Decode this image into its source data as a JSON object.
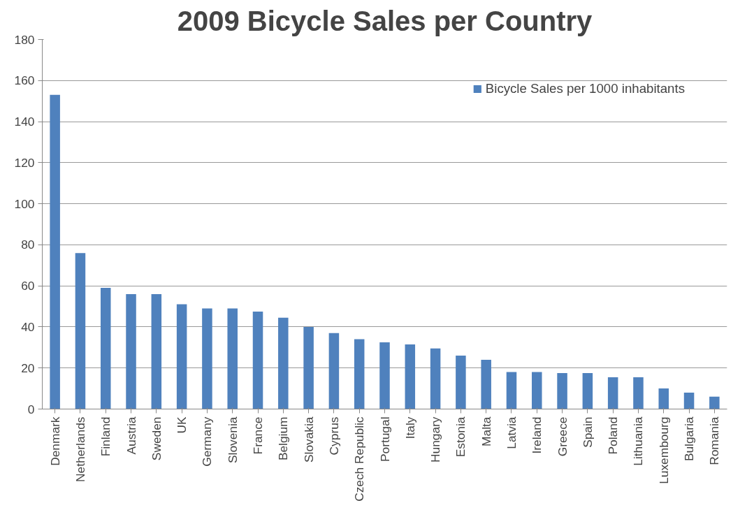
{
  "chart_data": {
    "type": "bar",
    "title": "2009 Bicycle Sales per Country",
    "categories": [
      "Denmark",
      "Netherlands",
      "Finland",
      "Austria",
      "Sweden",
      "UK",
      "Germany",
      "Slovenia",
      "France",
      "Belgium",
      "Slovakia",
      "Cyprus",
      "Czech Republic",
      "Portugal",
      "Italy",
      "Hungary",
      "Estonia",
      "Malta",
      "Latvia",
      "Ireland",
      "Greece",
      "Spain",
      "Poland",
      "Lithuania",
      "Luxembourg",
      "Bulgaria",
      "Romania"
    ],
    "series": [
      {
        "name": "Bicycle Sales per 1000 inhabitants",
        "color": "#4f81bd",
        "values": [
          153,
          76,
          59,
          56,
          56,
          51,
          49,
          49,
          47.5,
          44.5,
          40,
          37,
          34,
          32.5,
          31.5,
          29.5,
          26,
          24,
          18,
          18,
          17.5,
          17.5,
          15.5,
          15.5,
          10,
          8,
          6
        ]
      }
    ],
    "ylim": [
      0,
      180
    ],
    "yticks": [
      0,
      20,
      40,
      60,
      80,
      100,
      120,
      140,
      160,
      180
    ],
    "grid": "y",
    "legend": "top right"
  }
}
